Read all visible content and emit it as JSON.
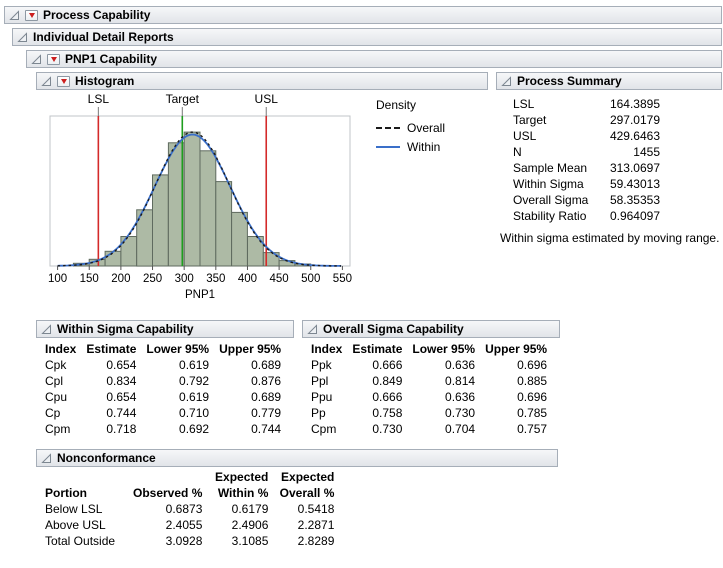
{
  "titles": {
    "process_capability": "Process Capability",
    "individual_detail_reports": "Individual Detail Reports",
    "pnp1_capability": "PNP1 Capability",
    "histogram": "Histogram",
    "process_summary": "Process Summary",
    "within_capability": "Within Sigma Capability",
    "overall_capability": "Overall Sigma Capability",
    "nonconformance": "Nonconformance"
  },
  "process_summary": {
    "rows": [
      [
        "LSL",
        "164.3895"
      ],
      [
        "Target",
        "297.0179"
      ],
      [
        "USL",
        "429.6463"
      ],
      [
        "N",
        "1455"
      ],
      [
        "Sample Mean",
        "313.0697"
      ],
      [
        "Within Sigma",
        "59.43013"
      ],
      [
        "Overall Sigma",
        "58.35353"
      ],
      [
        "Stability Ratio",
        "0.964097"
      ]
    ],
    "note": "Within sigma estimated by moving range."
  },
  "within_capability": {
    "headers": [
      "Index",
      "Estimate",
      "Lower 95%",
      "Upper 95%"
    ],
    "rows": [
      [
        "Cpk",
        "0.654",
        "0.619",
        "0.689"
      ],
      [
        "Cpl",
        "0.834",
        "0.792",
        "0.876"
      ],
      [
        "Cpu",
        "0.654",
        "0.619",
        "0.689"
      ],
      [
        "Cp",
        "0.744",
        "0.710",
        "0.779"
      ],
      [
        "Cpm",
        "0.718",
        "0.692",
        "0.744"
      ]
    ]
  },
  "overall_capability": {
    "headers": [
      "Index",
      "Estimate",
      "Lower 95%",
      "Upper 95%"
    ],
    "rows": [
      [
        "Ppk",
        "0.666",
        "0.636",
        "0.696"
      ],
      [
        "Ppl",
        "0.849",
        "0.814",
        "0.885"
      ],
      [
        "Ppu",
        "0.666",
        "0.636",
        "0.696"
      ],
      [
        "Pp",
        "0.758",
        "0.730",
        "0.785"
      ],
      [
        "Cpm",
        "0.730",
        "0.704",
        "0.757"
      ]
    ]
  },
  "nonconformance": {
    "headers_top": [
      "",
      "",
      "Expected",
      "Expected"
    ],
    "headers": [
      "Portion",
      "Observed %",
      "Within %",
      "Overall %"
    ],
    "rows": [
      [
        "Below LSL",
        "0.6873",
        "0.6179",
        "0.5418"
      ],
      [
        "Above USL",
        "2.4055",
        "2.4906",
        "2.2871"
      ],
      [
        "Total Outside",
        "3.0928",
        "3.1085",
        "2.8289"
      ]
    ]
  },
  "chart_data": {
    "type": "histogram",
    "xlabel": "PNP1",
    "xlim": [
      88,
      562
    ],
    "ymax": 1.12,
    "x_ticks": [
      100,
      150,
      200,
      250,
      300,
      350,
      400,
      450,
      500,
      550
    ],
    "bins": {
      "start": 125,
      "width": 25,
      "heights": [
        0.02,
        0.05,
        0.11,
        0.22,
        0.42,
        0.68,
        0.92,
        1.0,
        0.86,
        0.63,
        0.4,
        0.22,
        0.1,
        0.04,
        0.015
      ]
    },
    "curves": [
      {
        "name": "Within",
        "mean": 313.07,
        "sigma": 59.43,
        "peak": 0.982,
        "color": "#3a6fc9",
        "width": 1.8
      },
      {
        "name": "Overall",
        "mean": 313.07,
        "sigma": 58.35,
        "peak": 1.0,
        "color": "#1a1a1a",
        "width": 1.4,
        "dash": "2.5,3"
      }
    ],
    "ref_lines": [
      {
        "label": "LSL",
        "x": 164.3895,
        "color": "#d42a2a"
      },
      {
        "label": "Target",
        "x": 297.0179,
        "color": "#1e9e1e"
      },
      {
        "label": "USL",
        "x": 429.6463,
        "color": "#d42a2a"
      }
    ],
    "legend": {
      "title": "Density",
      "entries": [
        {
          "label": "Overall",
          "style": "dashed",
          "color": "#1a1a1a"
        },
        {
          "label": "Within",
          "style": "solid",
          "color": "#3a6fc9"
        }
      ]
    },
    "colors": {
      "bar_fill": "#adbaa5",
      "bar_stroke": "#5f6b5f",
      "frame": "#c0c4c8"
    }
  }
}
